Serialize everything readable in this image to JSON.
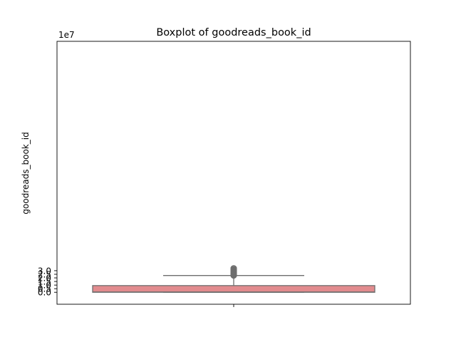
{
  "chart_data": {
    "type": "box",
    "title": "Boxplot of goodreads_book_id",
    "xlabel": "",
    "ylabel": "goodreads_book_id",
    "y_scale_label": "1e7",
    "ylim": [
      -1.66,
      34.86
    ],
    "yticks": [
      0.0,
      0.5,
      1.0,
      1.5,
      2.0,
      2.5,
      3.0
    ],
    "ytick_labels": [
      "0.0",
      "0.5",
      "1.0",
      "1.5",
      "2.0",
      "2.5",
      "3.0"
    ],
    "grid": false,
    "box": {
      "min": 0.0,
      "q1": 0.0,
      "median": 0.04,
      "q3": 0.93,
      "whisker_low": 0.0,
      "whisker_high": 2.33
    },
    "outliers": [
      2.34,
      2.36,
      2.38,
      2.4,
      2.42,
      2.44,
      2.46,
      2.48,
      2.5,
      2.52,
      2.54,
      2.56,
      2.58,
      2.6,
      2.62,
      2.64,
      2.66,
      2.68,
      2.7,
      2.72,
      2.74,
      2.76,
      2.78,
      2.8,
      2.82,
      2.84,
      2.86,
      2.88,
      2.9,
      2.92,
      2.94,
      2.96,
      2.98,
      3.0,
      3.02,
      3.05,
      3.1,
      3.15,
      3.18,
      3.28,
      3.33
    ],
    "colors": {
      "box_fill": "#e28b8e",
      "line": "#6e6e6e"
    }
  }
}
